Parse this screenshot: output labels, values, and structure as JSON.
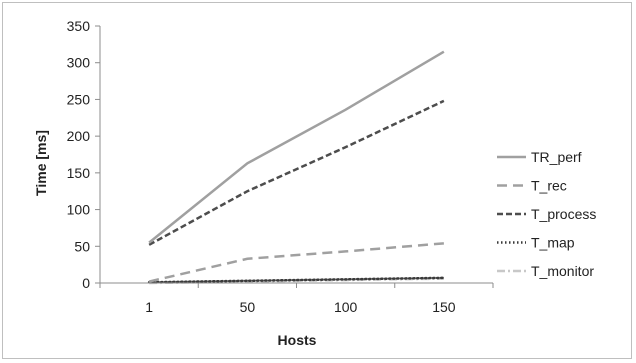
{
  "chart_data": {
    "type": "line",
    "title": "",
    "xlabel": "Hosts",
    "ylabel": "Time [ms]",
    "categories": [
      "1",
      "50",
      "100",
      "150"
    ],
    "ylim": [
      0,
      350
    ],
    "yticks": [
      "0",
      "50",
      "100",
      "150",
      "200",
      "250",
      "300",
      "350"
    ],
    "grid": false,
    "legend_position": "right",
    "series": [
      {
        "name": "TR_perf",
        "values": [
          55,
          163,
          236,
          315
        ],
        "color": "#a0a0a0",
        "dash": "solid"
      },
      {
        "name": "T_rec",
        "values": [
          2,
          33,
          43,
          54
        ],
        "color": "#a0a0a0",
        "dash": "long-dash"
      },
      {
        "name": "T_process",
        "values": [
          52,
          125,
          185,
          248
        ],
        "color": "#4d4d4d",
        "dash": "dash"
      },
      {
        "name": "T_map",
        "values": [
          1,
          3,
          5,
          7
        ],
        "color": "#3a3a3a",
        "dash": "dot"
      },
      {
        "name": "T_monitor",
        "values": [
          0,
          2,
          4,
          6
        ],
        "color": "#c8c8c8",
        "dash": "dash-dot"
      }
    ]
  }
}
